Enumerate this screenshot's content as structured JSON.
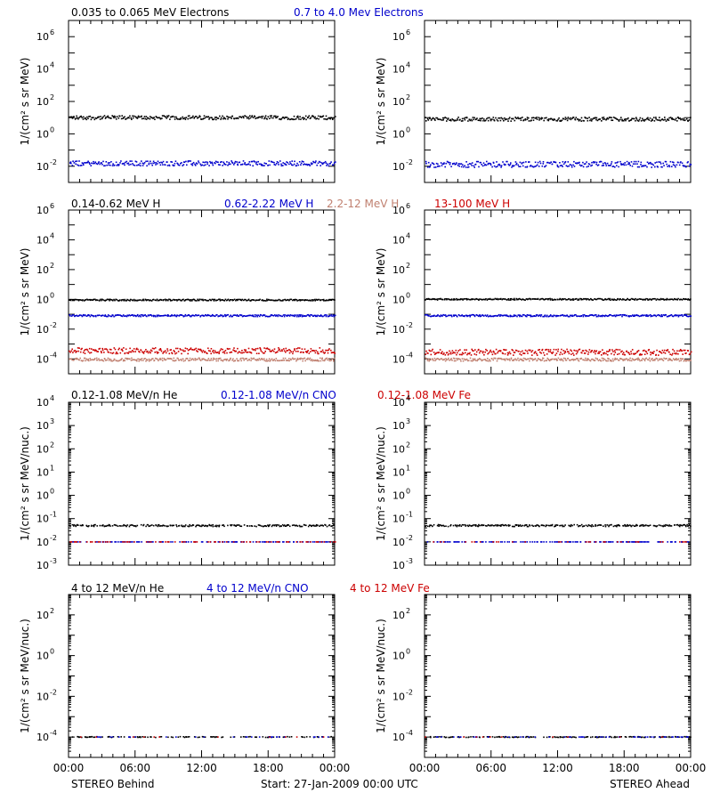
{
  "footer": {
    "left_label": "STEREO Behind",
    "center_label": "Start: 27-Jan-2009 00:00 UTC",
    "right_label": "STEREO Ahead"
  },
  "x_axis": {
    "tick_labels": [
      "00:00",
      "06:00",
      "12:00",
      "18:00",
      "00:00"
    ],
    "range_hours": [
      0,
      24
    ]
  },
  "rows": [
    {
      "id": "electrons",
      "legend": [
        {
          "text": "0.035 to 0.065 MeV Electrons",
          "color": "#000000"
        },
        {
          "text": "0.7 to 4.0 Mev Electrons",
          "color": "#0000cc"
        }
      ],
      "ylabel": "1/(cm² s sr MeV)",
      "ylog_range": [
        -3,
        7
      ],
      "yticks": [
        {
          "exp": -2,
          "label_base": "10",
          "label_exp": "-2"
        },
        {
          "exp": 0,
          "label_base": "10",
          "label_exp": "0"
        },
        {
          "exp": 2,
          "label_base": "10",
          "label_exp": "2"
        },
        {
          "exp": 4,
          "label_base": "10",
          "label_exp": "4"
        },
        {
          "exp": 6,
          "label_base": "10",
          "label_exp": "6"
        }
      ]
    },
    {
      "id": "protons",
      "legend": [
        {
          "text": "0.14-0.62 MeV H",
          "color": "#000000"
        },
        {
          "text": "0.62-2.22 MeV H",
          "color": "#0000cc"
        },
        {
          "text": "2.2-12 MeV H",
          "color": "#c08070"
        },
        {
          "text": "13-100 MeV H",
          "color": "#cc0000"
        }
      ],
      "ylabel": "1/(cm² s sr MeV)",
      "ylog_range": [
        -5,
        6
      ],
      "yticks": [
        {
          "exp": -4,
          "label_base": "10",
          "label_exp": "-4"
        },
        {
          "exp": -2,
          "label_base": "10",
          "label_exp": "-2"
        },
        {
          "exp": 0,
          "label_base": "10",
          "label_exp": "0"
        },
        {
          "exp": 2,
          "label_base": "10",
          "label_exp": "2"
        },
        {
          "exp": 4,
          "label_base": "10",
          "label_exp": "4"
        },
        {
          "exp": 6,
          "label_base": "10",
          "label_exp": "6"
        }
      ]
    },
    {
      "id": "heavy_low",
      "legend": [
        {
          "text": "0.12-1.08 MeV/n He",
          "color": "#000000"
        },
        {
          "text": "0.12-1.08 MeV/n CNO",
          "color": "#0000cc"
        },
        {
          "text": "0.12-1.08 MeV Fe",
          "color": "#cc0000"
        }
      ],
      "ylabel": "1/(cm² s sr MeV/nuc.)",
      "ylog_range": [
        -3,
        4
      ],
      "yticks": [
        {
          "exp": -3,
          "label_base": "10",
          "label_exp": "-3"
        },
        {
          "exp": -2,
          "label_base": "10",
          "label_exp": "-2"
        },
        {
          "exp": -1,
          "label_base": "10",
          "label_exp": "-1"
        },
        {
          "exp": 0,
          "label_base": "10",
          "label_exp": "0"
        },
        {
          "exp": 1,
          "label_base": "10",
          "label_exp": "1"
        },
        {
          "exp": 2,
          "label_base": "10",
          "label_exp": "2"
        },
        {
          "exp": 3,
          "label_base": "10",
          "label_exp": "3"
        },
        {
          "exp": 4,
          "label_base": "10",
          "label_exp": "4"
        }
      ]
    },
    {
      "id": "heavy_high",
      "legend": [
        {
          "text": "4 to 12 MeV/n He",
          "color": "#000000"
        },
        {
          "text": "4 to 12 MeV/n CNO",
          "color": "#0000cc"
        },
        {
          "text": "4 to 12 MeV Fe",
          "color": "#cc0000"
        }
      ],
      "ylabel": "1/(cm² s sr MeV/nuc.)",
      "ylog_range": [
        -5,
        3
      ],
      "yticks": [
        {
          "exp": -4,
          "label_base": "10",
          "label_exp": "-4"
        },
        {
          "exp": -2,
          "label_base": "10",
          "label_exp": "-2"
        },
        {
          "exp": 0,
          "label_base": "10",
          "label_exp": "0"
        },
        {
          "exp": 2,
          "label_base": "10",
          "label_exp": "2"
        }
      ]
    }
  ],
  "chart_data": [
    {
      "type": "scatter",
      "panel": "behind-electrons",
      "yscale": "log",
      "xlim": [
        0,
        24
      ],
      "ylim": [
        0.001,
        10000000
      ],
      "series": [
        {
          "name": "0.035 to 0.065 MeV Electrons",
          "color": "#000000",
          "level": 10,
          "spread_dex": 0.12,
          "coverage": 1.0
        },
        {
          "name": "0.7 to 4.0 Mev Electrons",
          "color": "#0000cc",
          "level": 0.015,
          "spread_dex": 0.15,
          "coverage": 1.0
        }
      ]
    },
    {
      "type": "scatter",
      "panel": "ahead-electrons",
      "yscale": "log",
      "xlim": [
        0,
        24
      ],
      "ylim": [
        0.001,
        10000000
      ],
      "series": [
        {
          "name": "0.035 to 0.065 MeV Electrons",
          "color": "#000000",
          "level": 8,
          "spread_dex": 0.12,
          "coverage": 1.0
        },
        {
          "name": "0.7 to 4.0 Mev Electrons",
          "color": "#0000cc",
          "level": 0.013,
          "spread_dex": 0.18,
          "coverage": 1.0
        }
      ]
    },
    {
      "type": "scatter",
      "panel": "behind-protons",
      "yscale": "log",
      "xlim": [
        0,
        24
      ],
      "ylim": [
        1e-05,
        1000000
      ],
      "series": [
        {
          "name": "0.14-0.62 MeV H",
          "color": "#000000",
          "level": 0.9,
          "spread_dex": 0.05,
          "coverage": 1.0
        },
        {
          "name": "0.62-2.22 MeV H",
          "color": "#0000cc",
          "level": 0.08,
          "spread_dex": 0.06,
          "coverage": 1.0
        },
        {
          "name": "2.2-12 MeV H",
          "color": "#c08070",
          "level": 9e-05,
          "spread_dex": 0.1,
          "coverage": 1.0
        },
        {
          "name": "13-100 MeV H",
          "color": "#cc0000",
          "level": 0.00035,
          "spread_dex": 0.2,
          "coverage": 1.0
        }
      ]
    },
    {
      "type": "scatter",
      "panel": "ahead-protons",
      "yscale": "log",
      "xlim": [
        0,
        24
      ],
      "ylim": [
        1e-05,
        1000000
      ],
      "series": [
        {
          "name": "0.14-0.62 MeV H",
          "color": "#000000",
          "level": 1.0,
          "spread_dex": 0.05,
          "coverage": 1.0
        },
        {
          "name": "0.62-2.22 MeV H",
          "color": "#0000cc",
          "level": 0.08,
          "spread_dex": 0.06,
          "coverage": 1.0
        },
        {
          "name": "2.2-12 MeV H",
          "color": "#c08070",
          "level": 9e-05,
          "spread_dex": 0.1,
          "coverage": 1.0
        },
        {
          "name": "13-100 MeV H",
          "color": "#cc0000",
          "level": 0.00028,
          "spread_dex": 0.2,
          "coverage": 1.0
        }
      ]
    },
    {
      "type": "scatter",
      "panel": "behind-heavy-low",
      "yscale": "log",
      "xlim": [
        0,
        24
      ],
      "ylim": [
        0.001,
        10000
      ],
      "series": [
        {
          "name": "0.12-1.08 MeV/n He",
          "color": "#000000",
          "level": 0.05,
          "spread_dex": 0.04,
          "coverage": 0.75
        },
        {
          "name": "0.12-1.08 MeV/n CNO",
          "color": "#0000cc",
          "level": 0.01,
          "spread_dex": 0.0,
          "coverage": 0.4
        },
        {
          "name": "0.12-1.08 MeV Fe",
          "color": "#cc0000",
          "level": 0.01,
          "spread_dex": 0.0,
          "coverage": 0.25
        }
      ]
    },
    {
      "type": "scatter",
      "panel": "ahead-heavy-low",
      "yscale": "log",
      "xlim": [
        0,
        24
      ],
      "ylim": [
        0.001,
        10000
      ],
      "series": [
        {
          "name": "0.12-1.08 MeV/n He",
          "color": "#000000",
          "level": 0.05,
          "spread_dex": 0.04,
          "coverage": 0.8
        },
        {
          "name": "0.12-1.08 MeV/n CNO",
          "color": "#0000cc",
          "level": 0.01,
          "spread_dex": 0.0,
          "coverage": 0.45
        },
        {
          "name": "0.12-1.08 MeV Fe",
          "color": "#cc0000",
          "level": 0.01,
          "spread_dex": 0.0,
          "coverage": 0.1
        }
      ]
    },
    {
      "type": "scatter",
      "panel": "behind-heavy-high",
      "yscale": "log",
      "xlim": [
        0,
        24
      ],
      "ylim": [
        1e-05,
        1000
      ],
      "series": [
        {
          "name": "4 to 12 MeV/n He",
          "color": "#000000",
          "level": 0.0001,
          "spread_dex": 0.02,
          "coverage": 0.35
        },
        {
          "name": "4 to 12 MeV/n CNO",
          "color": "#0000cc",
          "level": 0.0001,
          "spread_dex": 0.0,
          "coverage": 0.1
        },
        {
          "name": "4 to 12 MeV Fe",
          "color": "#cc0000",
          "level": 0.0001,
          "spread_dex": 0.0,
          "coverage": 0.05
        }
      ]
    },
    {
      "type": "scatter",
      "panel": "ahead-heavy-high",
      "yscale": "log",
      "xlim": [
        0,
        24
      ],
      "ylim": [
        1e-05,
        1000
      ],
      "series": [
        {
          "name": "4 to 12 MeV/n He",
          "color": "#000000",
          "level": 0.0001,
          "spread_dex": 0.02,
          "coverage": 0.45
        },
        {
          "name": "4 to 12 MeV/n CNO",
          "color": "#0000cc",
          "level": 0.0001,
          "spread_dex": 0.0,
          "coverage": 0.15
        },
        {
          "name": "4 to 12 MeV Fe",
          "color": "#cc0000",
          "level": 0.0001,
          "spread_dex": 0.0,
          "coverage": 0.03
        }
      ]
    }
  ]
}
